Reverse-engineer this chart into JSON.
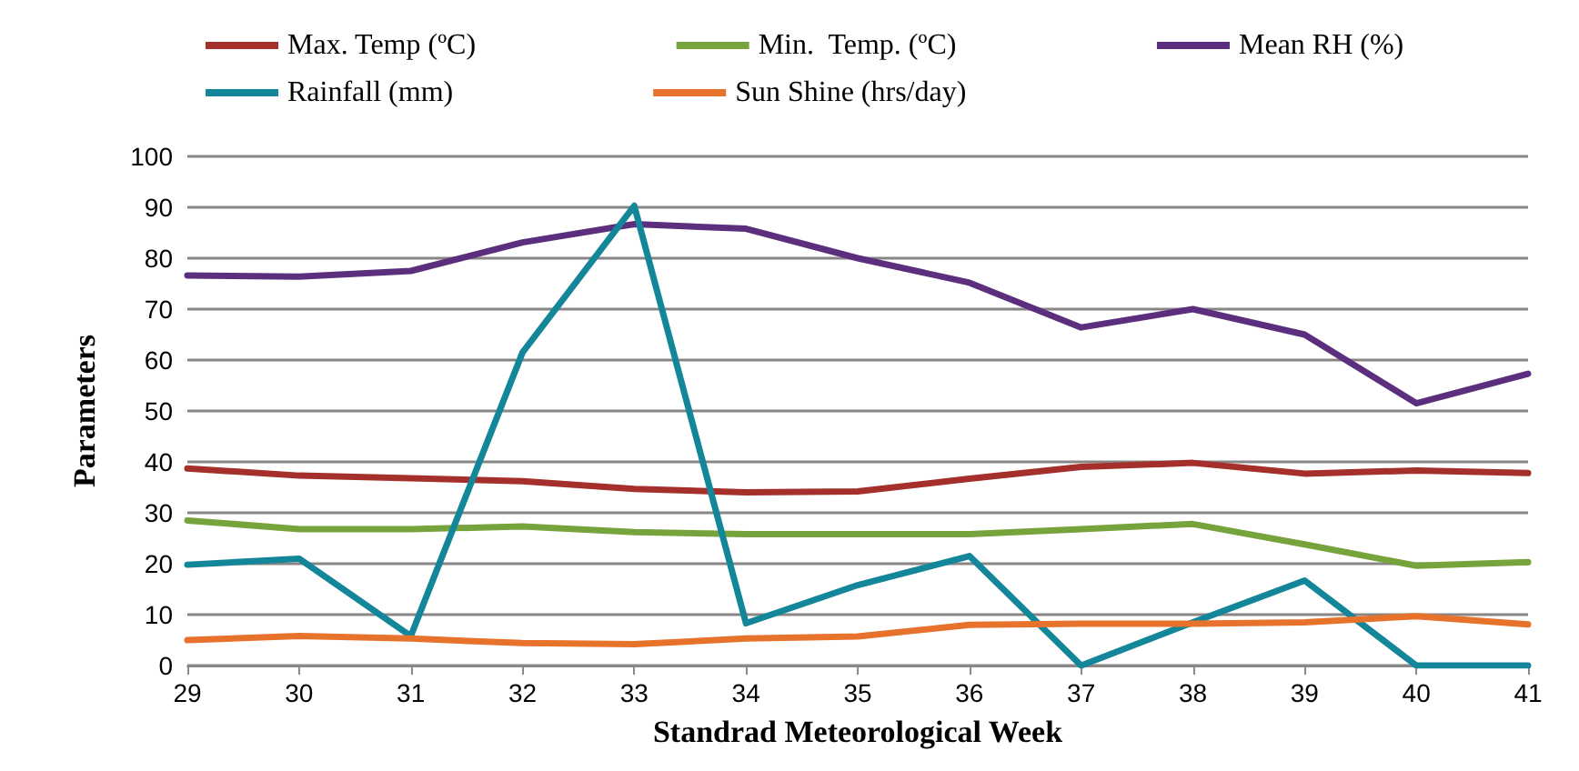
{
  "chart_data": {
    "type": "line",
    "xlabel": "Standrad Meteorological Week",
    "ylabel": "Parameters",
    "x": [
      29,
      30,
      31,
      32,
      33,
      34,
      35,
      36,
      37,
      38,
      39,
      40,
      41
    ],
    "series": [
      {
        "name": "Max. Temp (ºC)",
        "color": "#a5302b",
        "values": [
          38.7,
          37.3,
          36.8,
          36.2,
          34.7,
          34,
          34.2,
          36.7,
          39,
          39.8,
          37.7,
          38.3,
          37.8
        ]
      },
      {
        "name": "Min.  Temp. (ºC)",
        "color": "#77a33d",
        "values": [
          28.5,
          26.8,
          26.8,
          27.3,
          26.2,
          25.8,
          25.8,
          25.8,
          26.8,
          27.8,
          23.8,
          19.6,
          20.3
        ]
      },
      {
        "name": "Mean RH (%)",
        "color": "#5b2f7e",
        "values": [
          76.6,
          76.4,
          77.5,
          83.1,
          86.7,
          85.8,
          80,
          75.2,
          66.4,
          70,
          65,
          51.5,
          57.3
        ]
      },
      {
        "name": "Rainfall (mm)",
        "color": "#13869a",
        "values": [
          19.8,
          21,
          5.8,
          61.5,
          90.3,
          8.3,
          15.8,
          21.5,
          0,
          8.5,
          16.7,
          0,
          0
        ]
      },
      {
        "name": "Sun Shine (hrs/day)",
        "color": "#e6722c",
        "values": [
          5,
          5.8,
          5.3,
          4.4,
          4.2,
          5.3,
          5.7,
          8,
          8.2,
          8.2,
          8.5,
          9.7,
          8.1
        ]
      }
    ],
    "xlim": [
      29,
      41
    ],
    "xticks": [
      29,
      30,
      31,
      32,
      33,
      34,
      35,
      36,
      37,
      38,
      39,
      40,
      41
    ],
    "ylim": [
      0,
      100
    ],
    "yticks": [
      0,
      10,
      20,
      30,
      40,
      50,
      60,
      70,
      80,
      90,
      100
    ],
    "grid": "y",
    "legend": "top",
    "marker": "none",
    "line_style": "solid"
  }
}
